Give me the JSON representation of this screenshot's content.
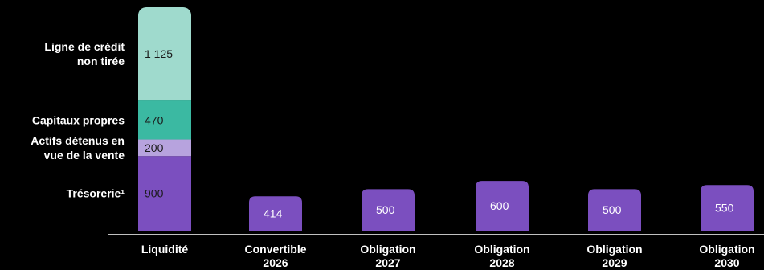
{
  "chart_data": {
    "type": "bar",
    "categories": [
      [
        "Liquidité"
      ],
      [
        "Convertible",
        "2026"
      ],
      [
        "Obligation",
        "2027"
      ],
      [
        "Obligation",
        "2028"
      ],
      [
        "Obligation",
        "2029"
      ],
      [
        "Obligation",
        "2030"
      ]
    ],
    "stacked_bar": {
      "category_index": 0,
      "segments": [
        {
          "name": [
            "Trésorerie¹"
          ],
          "value": 900,
          "label": "900",
          "color": "#7b4fbf"
        },
        {
          "name": [
            "Actifs détenus en",
            "vue de la vente"
          ],
          "value": 200,
          "label": "200",
          "color": "#b7a3de"
        },
        {
          "name": [
            "Capitaux propres"
          ],
          "value": 470,
          "label": "470",
          "color": "#3bb9a2"
        },
        {
          "name": [
            "Ligne de crédit",
            "non tirée"
          ],
          "value": 1125,
          "label": "1 125",
          "color": "#9fdacd"
        }
      ]
    },
    "bars": [
      {
        "category_index": 1,
        "value": 414,
        "label": "414",
        "color": "#7b4fbf"
      },
      {
        "category_index": 2,
        "value": 500,
        "label": "500",
        "color": "#7b4fbf"
      },
      {
        "category_index": 3,
        "value": 600,
        "label": "600",
        "color": "#7b4fbf"
      },
      {
        "category_index": 4,
        "value": 500,
        "label": "500",
        "color": "#7b4fbf"
      },
      {
        "category_index": 5,
        "value": 550,
        "label": "550",
        "color": "#7b4fbf"
      }
    ],
    "legend_placement": "left",
    "grid": false,
    "ylim": [
      0,
      2695
    ]
  }
}
